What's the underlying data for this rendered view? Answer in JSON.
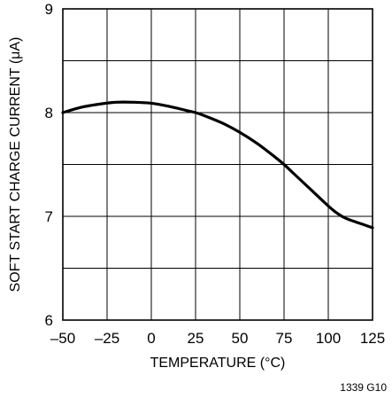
{
  "chart_data": {
    "type": "line",
    "title": "",
    "xlabel": "TEMPERATURE (°C)",
    "ylabel": "SOFT START CHARGE CURRENT (μA)",
    "xlim": [
      -50,
      125
    ],
    "ylim": [
      6,
      9
    ],
    "x_ticks": [
      -50,
      -25,
      0,
      25,
      50,
      75,
      100,
      125
    ],
    "x_tick_labels": [
      "–50",
      "–25",
      "0",
      "25",
      "50",
      "75",
      "100",
      "125"
    ],
    "y_ticks": [
      6,
      7,
      8,
      9
    ],
    "y_tick_labels": [
      "6",
      "7",
      "8",
      "9"
    ],
    "grid": true,
    "series": [
      {
        "x": [
          -50,
          -40,
          -30,
          -20,
          -10,
          0,
          10,
          20,
          25,
          30,
          40,
          50,
          60,
          70,
          75,
          80,
          90,
          100,
          105,
          110,
          120,
          125
        ],
        "y": [
          8.0,
          8.05,
          8.08,
          8.1,
          8.1,
          8.09,
          8.06,
          8.02,
          8.0,
          7.97,
          7.9,
          7.81,
          7.7,
          7.57,
          7.5,
          7.42,
          7.26,
          7.1,
          7.03,
          6.98,
          6.92,
          6.89
        ]
      }
    ],
    "figure_id": "1339 G10"
  }
}
